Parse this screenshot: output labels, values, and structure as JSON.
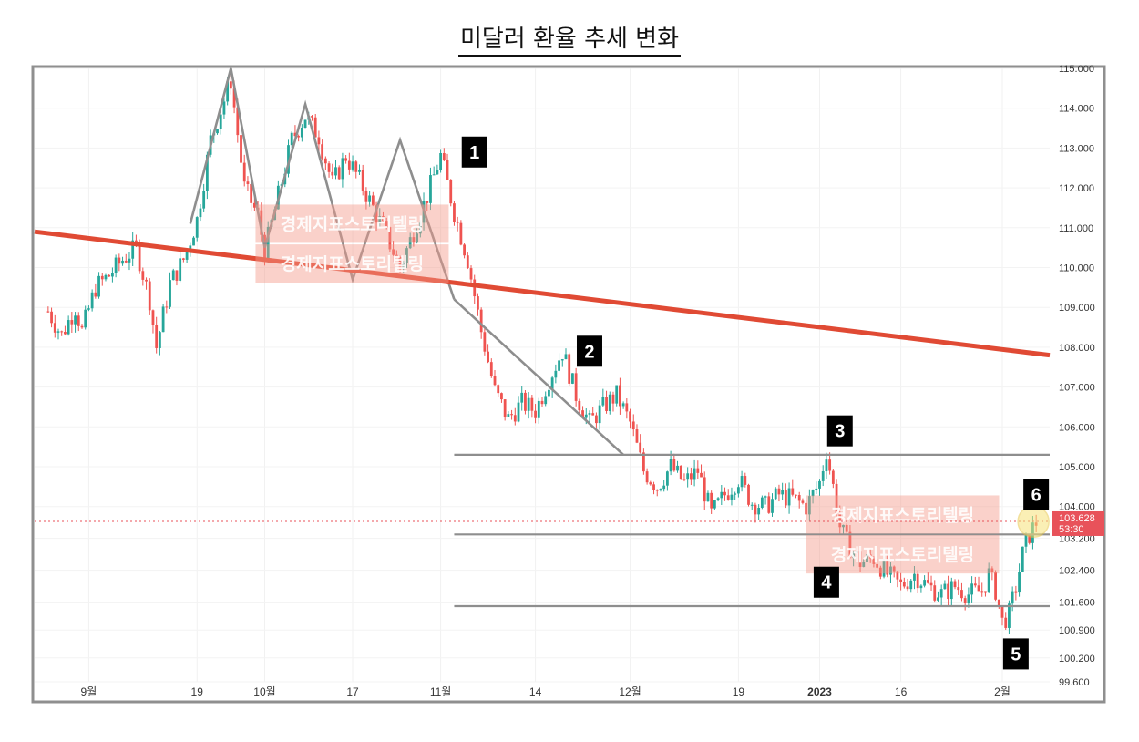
{
  "title": "미달러 환율 추세 변화",
  "chart_data": {
    "type": "candlestick",
    "title": "미달러 환율 추세 변화",
    "y_ticks": [
      99.6,
      100.2,
      100.9,
      101.6,
      102.4,
      103.2,
      104.0,
      105.0,
      106.0,
      107.0,
      108.0,
      109.0,
      110.0,
      111.0,
      112.0,
      113.0,
      114.0,
      115.0
    ],
    "y_tick_labels": [
      "99.600",
      "100.200",
      "100.900",
      "101.600",
      "102.400",
      "103.200",
      "104.000",
      "105.000",
      "106.000",
      "107.000",
      "108.000",
      "109.000",
      "110.000",
      "111.000",
      "112.000",
      "113.000",
      "114.000",
      "115.000"
    ],
    "x_ticks": [
      "9월",
      "19",
      "10월",
      "17",
      "11월",
      "14",
      "12월",
      "19",
      "2023",
      "16",
      "2월"
    ],
    "x_tick_positions": [
      6,
      22,
      32,
      45,
      58,
      72,
      86,
      102,
      114,
      126,
      141
    ],
    "x_range": [
      -2,
      148
    ],
    "current_price": {
      "value": 103.628,
      "label": "103.628",
      "countdown": "53:30"
    },
    "price_path": [
      [
        0,
        108.9
      ],
      [
        2,
        108.3
      ],
      [
        4,
        109.0
      ],
      [
        5,
        108.4
      ],
      [
        7,
        109.5
      ],
      [
        9,
        109.8
      ],
      [
        11,
        110.2
      ],
      [
        13,
        110.5
      ],
      [
        15,
        109.2
      ],
      [
        16,
        108.0
      ],
      [
        18,
        109.6
      ],
      [
        20,
        110.2
      ],
      [
        22,
        111.2
      ],
      [
        24,
        113.2
      ],
      [
        27,
        114.7
      ],
      [
        29,
        112.0
      ],
      [
        31,
        111.3
      ],
      [
        32,
        110.4
      ],
      [
        34,
        111.8
      ],
      [
        36,
        113.2
      ],
      [
        38,
        113.8
      ],
      [
        40,
        113.3
      ],
      [
        42,
        112.1
      ],
      [
        44,
        112.8
      ],
      [
        46,
        112.2
      ],
      [
        48,
        111.5
      ],
      [
        50,
        110.8
      ],
      [
        52,
        110.0
      ],
      [
        54,
        110.9
      ],
      [
        56,
        111.8
      ],
      [
        58,
        112.8
      ],
      [
        60,
        111.4
      ],
      [
        62,
        110.2
      ],
      [
        63,
        109.3
      ],
      [
        64,
        108.4
      ],
      [
        66,
        106.9
      ],
      [
        68,
        106.2
      ],
      [
        70,
        106.6
      ],
      [
        72,
        106.4
      ],
      [
        74,
        107.2
      ],
      [
        76,
        107.9
      ],
      [
        78,
        106.8
      ],
      [
        80,
        106.1
      ],
      [
        82,
        106.5
      ],
      [
        84,
        106.8
      ],
      [
        86,
        106.1
      ],
      [
        88,
        104.9
      ],
      [
        90,
        104.5
      ],
      [
        92,
        105.0
      ],
      [
        94,
        104.6
      ],
      [
        96,
        104.9
      ],
      [
        98,
        103.8
      ],
      [
        100,
        104.3
      ],
      [
        102,
        104.7
      ],
      [
        104,
        104.1
      ],
      [
        106,
        104.0
      ],
      [
        108,
        104.3
      ],
      [
        110,
        104.2
      ],
      [
        112,
        104.0
      ],
      [
        114,
        104.6
      ],
      [
        115,
        105.4
      ],
      [
        116,
        104.5
      ],
      [
        117,
        103.5
      ],
      [
        118,
        103.1
      ],
      [
        120,
        102.6
      ],
      [
        122,
        102.7
      ],
      [
        124,
        102.3
      ],
      [
        126,
        102.0
      ],
      [
        128,
        102.3
      ],
      [
        130,
        102.0
      ],
      [
        132,
        101.8
      ],
      [
        134,
        102.0
      ],
      [
        136,
        101.8
      ],
      [
        138,
        101.9
      ],
      [
        139,
        102.3
      ],
      [
        140,
        101.9
      ],
      [
        141,
        101.1
      ],
      [
        142,
        101.3
      ],
      [
        143,
        102.0
      ],
      [
        144,
        102.8
      ],
      [
        145,
        103.3
      ],
      [
        146,
        103.6
      ]
    ],
    "annotations": {
      "trendline": {
        "start": [
          -2,
          110.9
        ],
        "end": [
          148,
          107.8
        ]
      },
      "pattern": [
        [
          21,
          111.1
        ],
        [
          27,
          115.0
        ],
        [
          32,
          110.5
        ],
        [
          38,
          114.1
        ],
        [
          45,
          109.7
        ],
        [
          52,
          113.2
        ],
        [
          60,
          109.2
        ]
      ],
      "descending": [
        [
          60,
          109.2
        ],
        [
          85,
          105.3
        ]
      ],
      "horizontal_lines": [
        {
          "value": 105.3,
          "x_start": 60,
          "x_end": 148
        },
        {
          "value": 103.3,
          "x_start": 60,
          "x_end": 148
        },
        {
          "value": 101.5,
          "x_start": 60,
          "x_end": 148
        }
      ],
      "labels": [
        {
          "text": "1",
          "x": 63,
          "y": 112.9
        },
        {
          "text": "2",
          "x": 80,
          "y": 107.9
        },
        {
          "text": "3",
          "x": 117,
          "y": 105.9
        },
        {
          "text": "4",
          "x": 115,
          "y": 102.1
        },
        {
          "text": "5",
          "x": 143,
          "y": 100.3
        },
        {
          "text": "6",
          "x": 146,
          "y": 104.3
        }
      ],
      "watermarks": [
        "경제지표스토리텔링",
        "경제지표스토리텔링",
        "경제지표스토리텔링",
        "경제지표스토리텔링"
      ]
    },
    "colors": {
      "up": "#26a69a",
      "down": "#ef5350",
      "trendline": "#e04a34",
      "guide": "#8e8e8e",
      "badge": "#000000",
      "price_tag": "#e8525a"
    },
    "grid": true,
    "ylabel": "",
    "xlabel": ""
  }
}
